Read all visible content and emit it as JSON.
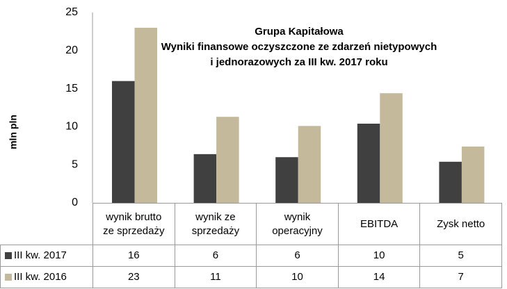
{
  "chart_data": {
    "type": "bar",
    "title": [
      "Grupa Kapitałowa",
      "Wyniki finansowe oczyszczone ze zdarzeń nietypowych",
      "i jednorazowych za III kw. 2017 roku"
    ],
    "ylabel": "mln pln",
    "categories": [
      "wynik brutto\nze sprzedaży",
      "wynik ze\nsprzedaży",
      "wynik\noperacyjny",
      "EBITDA",
      "Zysk netto"
    ],
    "series": [
      {
        "name": "III kw. 2017",
        "color": "#404040",
        "values": [
          16,
          6.4,
          6,
          10.4,
          5.4
        ],
        "value_labels": [
          "16",
          "6",
          "6",
          "10",
          "5"
        ]
      },
      {
        "name": "III kw. 2016",
        "color": "#c4b99a",
        "values": [
          23,
          11.3,
          10.1,
          14.4,
          7.4
        ],
        "value_labels": [
          "23",
          "11",
          "10",
          "14",
          "7"
        ]
      }
    ],
    "ylim": [
      0,
      25
    ],
    "yticks": [
      0,
      5,
      10,
      15,
      20,
      25
    ],
    "grid": false
  }
}
